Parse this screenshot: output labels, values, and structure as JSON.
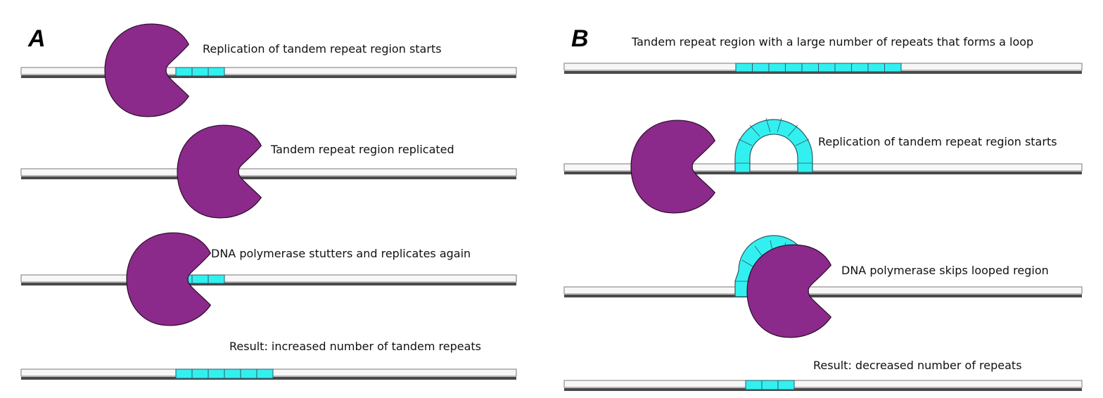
{
  "panels": [
    {
      "letter": "A",
      "captions": [
        "Replication of tandem repeat region starts",
        "Tandem repeat region replicated",
        "DNA polymerase stutters and replicates again",
        "Result: increased number of tandem repeats"
      ],
      "repeat_counts": [
        3,
        0,
        3,
        6
      ]
    },
    {
      "letter": "B",
      "captions": [
        "Tandem repeat region with a large number of repeats that forms a loop",
        "Replication of tandem repeat region starts",
        "DNA polymerase skips looped region",
        "Result: decreased number of repeats"
      ],
      "repeat_counts": [
        10,
        0,
        0,
        3
      ]
    }
  ],
  "colors": {
    "polymerase": "#8b2a8a",
    "repeat": "#33f0f0",
    "strand": "#f7f7f7"
  }
}
